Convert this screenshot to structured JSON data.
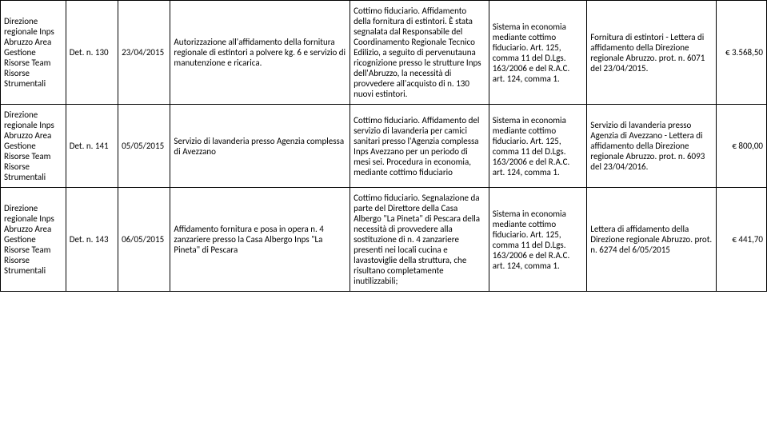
{
  "rows": [
    {
      "direzione": "Direzione regionale Inps Abruzzo\nArea Gestione Risorse\nTeam Risorse Strumentali",
      "det": "Det. n. 130",
      "data": "23/04/2015",
      "oggetto": "Autorizzazione all'affidamento della fornitura regionale di estintori a polvere kg. 6 e servizio di manutenzione e ricarica.",
      "descrizione": "Cottimo fiduciario. Affidamento della fornitura di estintori. È stata segnalata dal Responsabile del Coordinamento Regionale Tecnico Edilizio, a seguito di pervenutauna ricognizione presso le strutture Inps dell'Abruzzo, la necessità di provvedere all'acquisto di n. 130 nuovi estintori.",
      "norma": "Sistema in economia mediante cottimo fiduciario. Art. 125, comma 11 del D.Lgs. 163/2006 e del R.A.C. art. 124, comma 1.",
      "riferimento": "Fornitura di estintori - Lettera di affidamento della Direzione regionale Abruzzo. prot. n. 6071 del 23/04/2015.",
      "importo": "€ 3.568,50"
    },
    {
      "direzione": "Direzione regionale Inps Abruzzo\nArea Gestione Risorse\nTeam Risorse Strumentali",
      "det": "Det. n. 141",
      "data": "05/05/2015",
      "oggetto": "Servizio di lavanderia presso Agenzia complessa di Avezzano",
      "descrizione": "Cottimo fiduciario. Affidamento del servizio di lavanderia per camici sanitari presso l'Agenzia complessa Inps Avezzano per un periodo di mesi sei. Procedura in economia, mediante cottimo fiduciario",
      "norma": "Sistema in economia mediante cottimo fiduciario. Art. 125, comma 11 del D.Lgs. 163/2006 e del R.A.C. art. 124, comma 1.",
      "riferimento": "Servizio di lavanderia presso Agenzia di Avezzano - Lettera di affidamento della Direzione regionale Abruzzo. prot. n. 6093 del 23/04/2016.",
      "importo": "€ 800,00"
    },
    {
      "direzione": "Direzione regionale Inps Abruzzo\nArea Gestione Risorse\nTeam Risorse Strumentali",
      "det": "Det. n. 143",
      "data": "06/05/2015",
      "oggetto": "Affidamento fornitura e posa in opera n. 4 zanzariere presso la Casa Albergo Inps \"La Pineta\" di Pescara",
      "descrizione": "Cottimo fiduciario. Segnalazione da parte del Direttore della Casa Albergo \"La Pineta\" di Pescara  della necessità di provvedere alla sostituzione di n. 4 zanzariere presenti nei locali cucina e lavastoviglie della struttura, che risultano completamente inutilizzabili;",
      "norma": "Sistema in economia mediante cottimo fiduciario. Art. 125, comma 11 del D.Lgs. 163/2006 e del R.A.C. art. 124, comma 1.",
      "riferimento": "Lettera di affidamento della Direzione regionale Abruzzo. prot. n. 6274 del 6/05/2015",
      "importo": "€ 441,70"
    }
  ]
}
